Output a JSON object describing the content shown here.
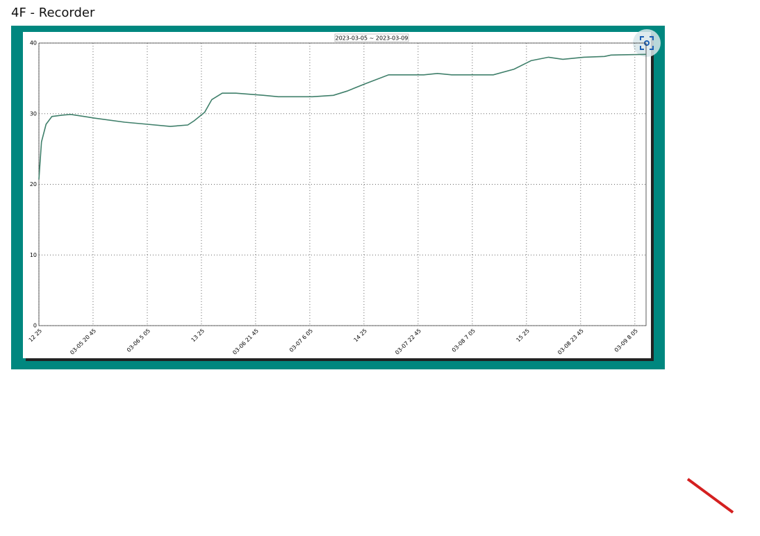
{
  "header": {
    "title": "4F - Recorder"
  },
  "chart_data": {
    "type": "line",
    "title": "2023-03-05 ~ 2023-03-09",
    "x": [
      0,
      0.4,
      1.1,
      2.0,
      3.6,
      4.9,
      8.4,
      13.2,
      16.7,
      20.2,
      22.9,
      23.9,
      25.5,
      26.6,
      28.2,
      30.3,
      34.6,
      36.8,
      42.1,
      45.3,
      47.4,
      50.1,
      53.8,
      59.2,
      61.3,
      63.5,
      69.9,
      73.1,
      75.7,
      78.4,
      80.6,
      83.8,
      87.0,
      88.0,
      93.4
    ],
    "values": [
      20.7,
      26,
      28.5,
      29.6,
      29.8,
      29.9,
      29.4,
      28.8,
      28.5,
      28.2,
      28.4,
      29,
      30.2,
      32,
      32.9,
      32.9,
      32.6,
      32.4,
      32.4,
      32.6,
      33.2,
      34.2,
      35.5,
      35.5,
      35.7,
      35.5,
      35.5,
      36.3,
      37.5,
      38,
      37.7,
      38,
      38.1,
      38.3,
      38.4
    ],
    "color": "#3f7f6a",
    "xlim": [
      0,
      93.4
    ],
    "xticks": [
      {
        "value": 0,
        "label": "12 25"
      },
      {
        "value": 8.33,
        "label": "03-05 20 45"
      },
      {
        "value": 16.67,
        "label": "03-06 5 05"
      },
      {
        "value": 25,
        "label": "13 25"
      },
      {
        "value": 33.33,
        "label": "03-06 21 45"
      },
      {
        "value": 41.67,
        "label": "03-07 6 05"
      },
      {
        "value": 50,
        "label": "14 25"
      },
      {
        "value": 58.33,
        "label": "03-07 22 45"
      },
      {
        "value": 66.67,
        "label": "03-08 7 05"
      },
      {
        "value": 75,
        "label": "15 25"
      },
      {
        "value": 83.33,
        "label": "03-08 23 45"
      },
      {
        "value": 91.67,
        "label": "03-09 8 05"
      }
    ],
    "ylim": [
      0,
      40
    ],
    "yticks": [
      0,
      10,
      20,
      30,
      40
    ],
    "grid": true
  }
}
